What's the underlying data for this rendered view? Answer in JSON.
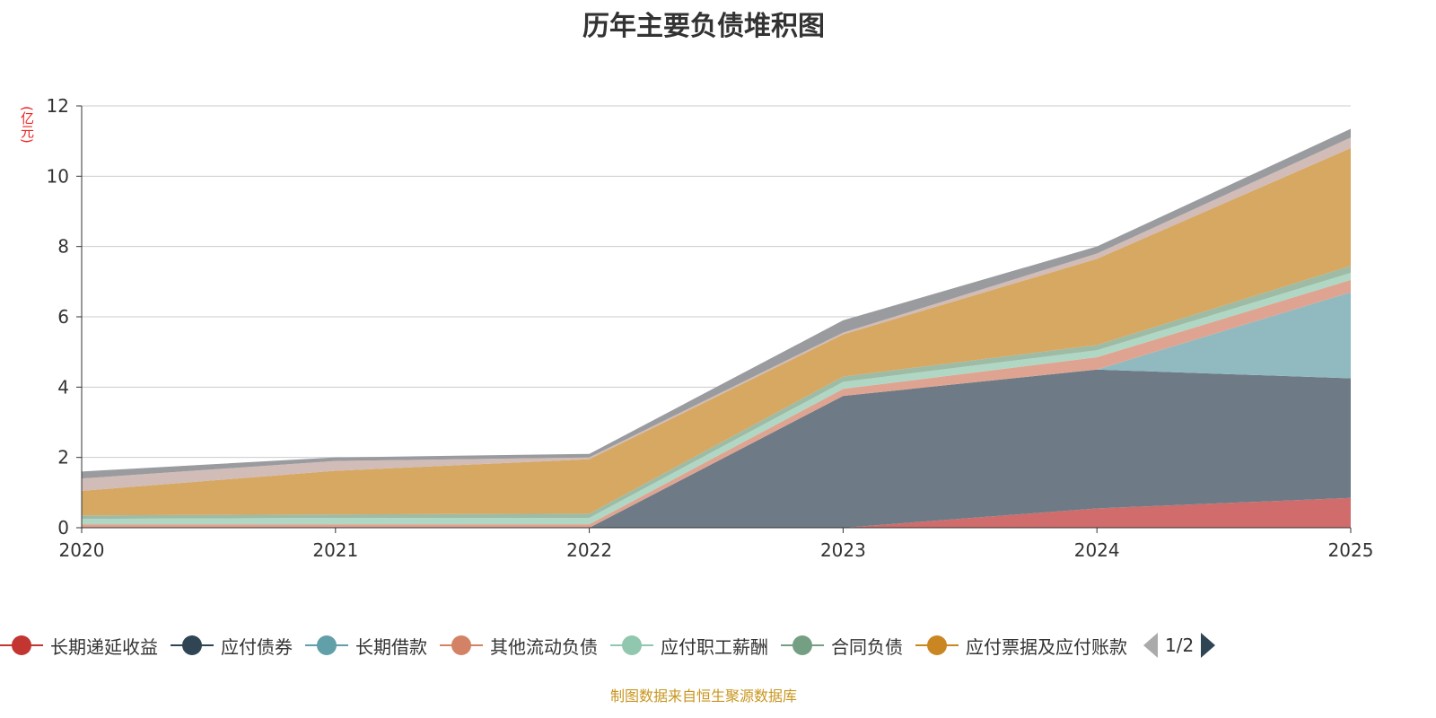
{
  "chart_data": {
    "type": "area",
    "stacked": true,
    "title": "历年主要负债堆积图",
    "ylabel": "(亿元)",
    "xlabel": "",
    "categories": [
      "2020",
      "2021",
      "2022",
      "2023",
      "2024",
      "2025"
    ],
    "ylim": [
      0,
      12
    ],
    "yticks": [
      "0",
      "2",
      "4",
      "6",
      "8",
      "10",
      "12"
    ],
    "grid": true,
    "legend_position": "bottom",
    "series": [
      {
        "name": "长期递延收益",
        "color": "#c23531",
        "fill": "#d06c6b",
        "values": [
          0,
          0,
          0,
          0,
          0.55,
          0.85
        ]
      },
      {
        "name": "应付债券",
        "color": "#2f4554",
        "fill": "#6e7b86",
        "values": [
          0,
          0,
          0,
          3.75,
          3.95,
          3.4
        ]
      },
      {
        "name": "长期借款",
        "color": "#61a0a8",
        "fill": "#90bac0",
        "values": [
          0,
          0,
          0,
          0,
          0,
          2.45
        ]
      },
      {
        "name": "其他流动负债",
        "color": "#d48265",
        "fill": "#dfa491",
        "values": [
          0.1,
          0.1,
          0.1,
          0.2,
          0.35,
          0.35
        ]
      },
      {
        "name": "应付职工薪酬",
        "color": "#91c7ae",
        "fill": "#b0d7c4",
        "values": [
          0.15,
          0.18,
          0.18,
          0.2,
          0.2,
          0.2
        ]
      },
      {
        "name": "合同负债",
        "color": "#749f83",
        "fill": "#9ebba5",
        "values": [
          0.1,
          0.1,
          0.12,
          0.15,
          0.15,
          0.2
        ]
      },
      {
        "name": "应付票据及应付账款",
        "color": "#ca8622",
        "fill": "#d6a862",
        "values": [
          0.7,
          1.24,
          1.55,
          1.2,
          2.45,
          3.35
        ]
      },
      {
        "color": "#bda29a",
        "fill": "#d1bcb7",
        "values": [
          0.35,
          0.28,
          0.05,
          0.05,
          0.15,
          0.3
        ]
      },
      {
        "color": "#6e7074",
        "fill": "#9a9b9e",
        "values": [
          0.2,
          0.1,
          0.1,
          0.35,
          0.2,
          0.25
        ]
      }
    ]
  },
  "legend": {
    "page": "1/2"
  },
  "source": "制图数据来自恒生聚源数据库"
}
